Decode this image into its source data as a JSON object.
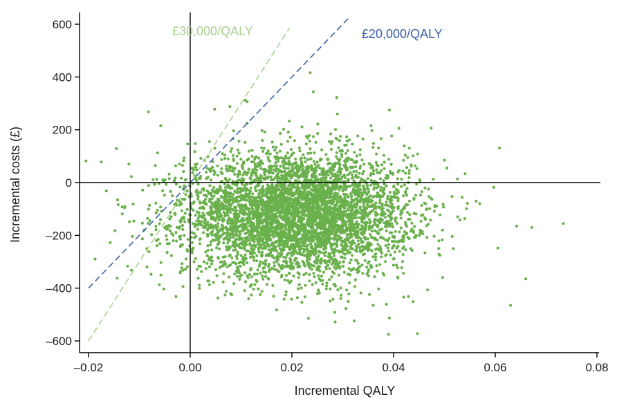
{
  "chart_data": {
    "type": "scatter",
    "xlabel": "Incremental QALY",
    "ylabel": "Incremental costs (£)",
    "xlim": [
      -0.02,
      0.08
    ],
    "ylim": [
      -600,
      600
    ],
    "x_ticks": [
      -0.02,
      0.0,
      0.02,
      0.04,
      0.06,
      0.08
    ],
    "x_tick_labels": [
      "–0.02",
      "0.00",
      "0.02",
      "0.04",
      "0.06",
      "0.08"
    ],
    "y_ticks": [
      -600,
      -400,
      -200,
      0,
      200,
      400,
      600
    ],
    "y_tick_labels": [
      "–600",
      "–400",
      "–200",
      "0",
      "200",
      "400",
      "600"
    ],
    "grid": false,
    "colors": {
      "points": "#6ab04c",
      "wtp_30000": "#a8d08d",
      "wtp_20000": "#3a5fa8"
    },
    "thresholds": [
      {
        "label": "£30,000/QALY",
        "slope": 30000,
        "style": "dashed"
      },
      {
        "label": "£20,000/QALY",
        "slope": 20000,
        "style": "dashed"
      }
    ],
    "scatter_distribution": {
      "count": 5000,
      "mean_x": 0.021,
      "sd_x": 0.011,
      "mean_y": -120,
      "sd_y": 115
    },
    "notable_points": [
      {
        "x": -0.0205,
        "y": 82
      },
      {
        "x": -0.0175,
        "y": 78
      },
      {
        "x": -0.0165,
        "y": -32
      },
      {
        "x": -0.0148,
        "y": -182
      },
      {
        "x": -0.0082,
        "y": 268
      },
      {
        "x": -0.0058,
        "y": 215
      },
      {
        "x": -0.0028,
        "y": -432
      },
      {
        "x": 0.0048,
        "y": 278
      },
      {
        "x": 0.0078,
        "y": 288
      },
      {
        "x": 0.0108,
        "y": 312
      },
      {
        "x": 0.0112,
        "y": 306
      },
      {
        "x": 0.0236,
        "y": 416
      },
      {
        "x": 0.0242,
        "y": 344
      },
      {
        "x": 0.0288,
        "y": 322
      },
      {
        "x": 0.0285,
        "y": -528
      },
      {
        "x": 0.039,
        "y": -575
      },
      {
        "x": 0.0447,
        "y": -572
      },
      {
        "x": 0.0474,
        "y": 206
      },
      {
        "x": 0.0597,
        "y": -18
      },
      {
        "x": 0.0605,
        "y": -248
      },
      {
        "x": 0.063,
        "y": -465
      },
      {
        "x": 0.0642,
        "y": -165
      },
      {
        "x": 0.066,
        "y": -365
      },
      {
        "x": 0.0672,
        "y": -170
      },
      {
        "x": 0.0734,
        "y": -155
      },
      {
        "x": 0.05,
        "y": 85
      },
      {
        "x": 0.0505,
        "y": 55
      }
    ]
  }
}
